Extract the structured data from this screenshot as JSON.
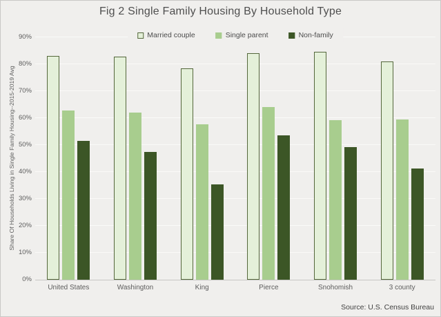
{
  "chart_data": {
    "type": "bar",
    "title": "Fig 2 Single Family Housing By Household Type",
    "ylabel": "Share Of Households Living in Single Family Housing--2015-2019 Avg",
    "xlabel": "",
    "source": "Source: U.S. Census Bureau",
    "categories": [
      "United States",
      "Washington",
      "King",
      "Pierce",
      "Snohomish",
      "3 county"
    ],
    "series": [
      {
        "name": "Married couple",
        "fill": "#e4f0d9",
        "border": "#53663a",
        "values": [
          83,
          82.7,
          78.4,
          84.2,
          84.5,
          81
        ]
      },
      {
        "name": "Single parent",
        "fill": "#a8cd8e",
        "border": "",
        "values": [
          62.7,
          62.1,
          57.6,
          64,
          59.2,
          59.5
        ]
      },
      {
        "name": "Non-family",
        "fill": "#3c5626",
        "border": "",
        "values": [
          51.6,
          47.5,
          35.5,
          53.7,
          49.3,
          41.2
        ]
      }
    ],
    "ylim": [
      0,
      90
    ],
    "ytick_step": 10,
    "ytick_labels": [
      "0%",
      "10%",
      "20%",
      "30%",
      "40%",
      "50%",
      "60%",
      "70%",
      "80%",
      "90%"
    ],
    "grid": true,
    "legend_position": "top-center",
    "colors": {
      "background": "#f0efed",
      "gridline": "#fafaf8",
      "axis_line": "#c6c6c4",
      "tick_text": "#5c5c5c",
      "title_text": "#4f4f4f"
    }
  }
}
